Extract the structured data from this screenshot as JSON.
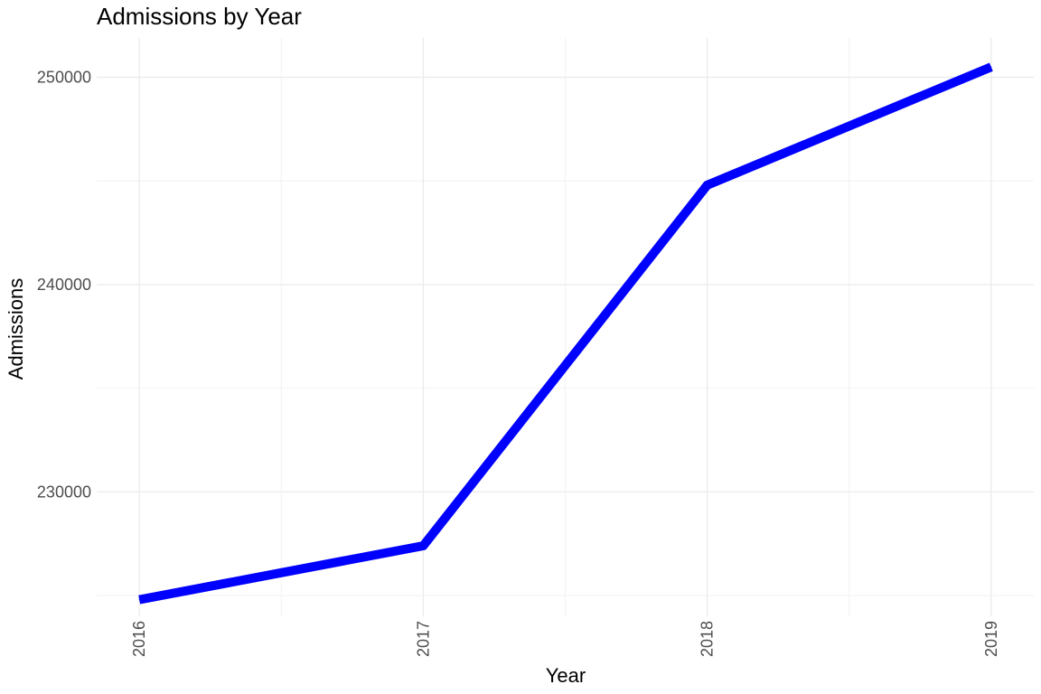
{
  "chart_data": {
    "type": "line",
    "title": "Admissions by Year",
    "xlabel": "Year",
    "ylabel": "Admissions",
    "x": [
      2016,
      2017,
      2018,
      2019
    ],
    "x_ticks": [
      "2016",
      "2017",
      "2018",
      "2019"
    ],
    "y_ticks": [
      "230000",
      "240000",
      "250000"
    ],
    "series": [
      {
        "values": [
          224800,
          227400,
          244800,
          250500
        ],
        "color": "#0000ff"
      }
    ],
    "ylim": [
      224000,
      251900
    ],
    "xlim": [
      2015.85,
      2019.15
    ],
    "grid": true,
    "legend": "none"
  }
}
